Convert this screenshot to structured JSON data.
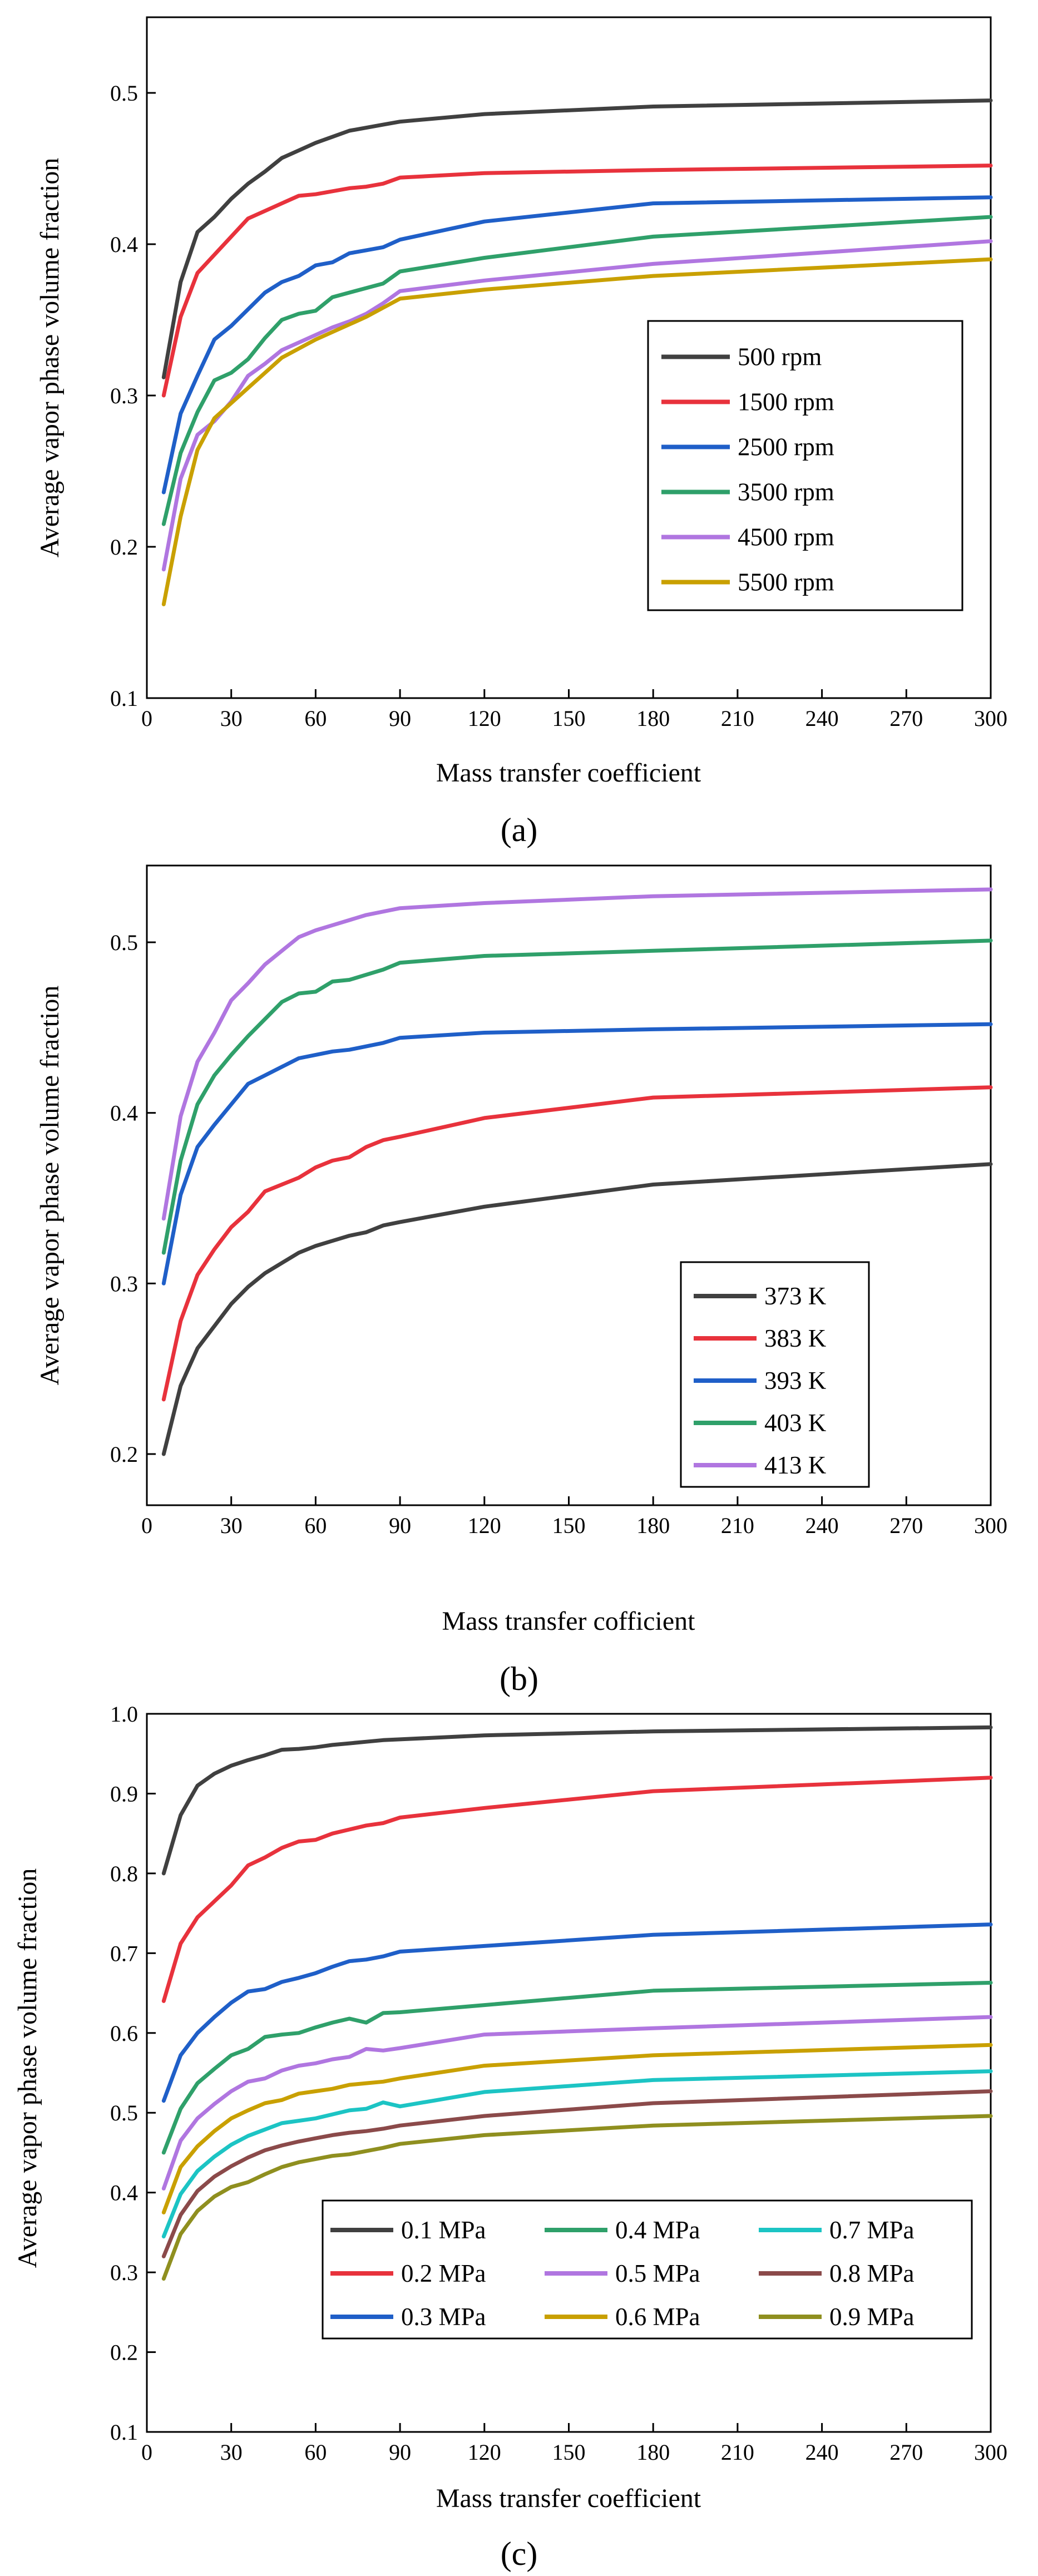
{
  "chart_data": [
    {
      "type": "line",
      "panel_label": "(a)",
      "xlabel": "Mass transfer coefficient",
      "ylabel": "Average vapor phase volume fraction",
      "xlim": [
        0,
        300
      ],
      "ylim": [
        0.1,
        0.55
      ],
      "xticks": [
        0,
        30,
        60,
        90,
        120,
        150,
        180,
        210,
        240,
        270,
        300
      ],
      "yticks": [
        0.1,
        0.2,
        0.3,
        0.4,
        0.5
      ],
      "ytick_labels": [
        "0.1",
        "0.2",
        "0.3",
        "0.4",
        "0.5"
      ],
      "legend_position": "center-right",
      "legend_columns": 1,
      "series": [
        {
          "name": "500 rpm",
          "color": "#404040",
          "x": [
            6,
            12,
            18,
            24,
            30,
            36,
            42,
            48,
            54,
            60,
            66,
            72,
            78,
            84,
            90,
            120,
            180,
            300
          ],
          "y": [
            0.312,
            0.375,
            0.408,
            0.418,
            0.43,
            0.44,
            0.448,
            0.457,
            0.462,
            0.467,
            0.471,
            0.475,
            0.477,
            0.479,
            0.481,
            0.486,
            0.491,
            0.495
          ]
        },
        {
          "name": "1500 rpm",
          "color": "#e8323c",
          "x": [
            6,
            12,
            18,
            24,
            30,
            36,
            42,
            48,
            54,
            60,
            66,
            72,
            78,
            84,
            90,
            120,
            180,
            300
          ],
          "y": [
            0.3,
            0.352,
            0.381,
            0.393,
            0.405,
            0.417,
            0.422,
            0.427,
            0.432,
            0.433,
            0.435,
            0.437,
            0.438,
            0.44,
            0.444,
            0.447,
            0.449,
            0.452
          ]
        },
        {
          "name": "2500 rpm",
          "color": "#1f5fc8",
          "x": [
            6,
            12,
            18,
            24,
            30,
            36,
            42,
            48,
            54,
            60,
            66,
            72,
            78,
            84,
            90,
            120,
            180,
            300
          ],
          "y": [
            0.236,
            0.288,
            0.313,
            0.337,
            0.346,
            0.357,
            0.368,
            0.375,
            0.379,
            0.386,
            0.388,
            0.394,
            0.396,
            0.398,
            0.403,
            0.415,
            0.427,
            0.431
          ]
        },
        {
          "name": "3500 rpm",
          "color": "#2fa06a",
          "x": [
            6,
            12,
            18,
            24,
            30,
            36,
            42,
            48,
            54,
            60,
            66,
            72,
            78,
            84,
            90,
            120,
            180,
            300
          ],
          "y": [
            0.215,
            0.262,
            0.289,
            0.31,
            0.315,
            0.324,
            0.338,
            0.35,
            0.354,
            0.356,
            0.365,
            0.368,
            0.371,
            0.374,
            0.382,
            0.391,
            0.405,
            0.418
          ]
        },
        {
          "name": "4500 rpm",
          "color": "#b076e0",
          "x": [
            6,
            12,
            18,
            24,
            30,
            36,
            42,
            48,
            54,
            60,
            66,
            72,
            78,
            84,
            90,
            120,
            180,
            300
          ],
          "y": [
            0.185,
            0.245,
            0.274,
            0.283,
            0.296,
            0.313,
            0.321,
            0.33,
            0.335,
            0.34,
            0.345,
            0.349,
            0.354,
            0.361,
            0.369,
            0.376,
            0.387,
            0.402
          ]
        },
        {
          "name": "5500 rpm",
          "color": "#c9a000",
          "x": [
            6,
            12,
            18,
            24,
            30,
            36,
            42,
            48,
            54,
            60,
            66,
            72,
            78,
            84,
            90,
            120,
            180,
            300
          ],
          "y": [
            0.162,
            0.22,
            0.264,
            0.285,
            0.295,
            0.305,
            0.315,
            0.325,
            0.331,
            0.337,
            0.342,
            0.347,
            0.352,
            0.358,
            0.364,
            0.37,
            0.379,
            0.39
          ]
        }
      ]
    },
    {
      "type": "line",
      "panel_label": "(b)",
      "xlabel": "Mass transfer cofficient",
      "ylabel": "Average vapor phase volume fraction",
      "xlim": [
        0,
        300
      ],
      "ylim": [
        0.17,
        0.545
      ],
      "xticks": [
        0,
        30,
        60,
        90,
        120,
        150,
        180,
        210,
        240,
        270,
        300
      ],
      "yticks": [
        0.2,
        0.3,
        0.4,
        0.5
      ],
      "ytick_labels": [
        "0.2",
        "0.3",
        "0.4",
        "0.5"
      ],
      "legend_position": "lower-center",
      "legend_columns": 1,
      "series": [
        {
          "name": "373 K",
          "color": "#404040",
          "x": [
            6,
            12,
            18,
            24,
            30,
            36,
            42,
            48,
            54,
            60,
            66,
            72,
            78,
            84,
            90,
            120,
            180,
            300
          ],
          "y": [
            0.2,
            0.24,
            0.262,
            0.275,
            0.288,
            0.298,
            0.306,
            0.312,
            0.318,
            0.322,
            0.325,
            0.328,
            0.33,
            0.334,
            0.336,
            0.345,
            0.358,
            0.37
          ]
        },
        {
          "name": "383 K",
          "color": "#e8323c",
          "x": [
            6,
            12,
            18,
            24,
            30,
            36,
            42,
            48,
            54,
            60,
            66,
            72,
            78,
            84,
            90,
            120,
            180,
            300
          ],
          "y": [
            0.232,
            0.278,
            0.305,
            0.32,
            0.333,
            0.342,
            0.354,
            0.358,
            0.362,
            0.368,
            0.372,
            0.374,
            0.38,
            0.384,
            0.386,
            0.397,
            0.409,
            0.415
          ]
        },
        {
          "name": "393 K",
          "color": "#1f5fc8",
          "x": [
            6,
            12,
            18,
            24,
            30,
            36,
            42,
            48,
            54,
            60,
            66,
            72,
            78,
            84,
            90,
            120,
            180,
            300
          ],
          "y": [
            0.3,
            0.352,
            0.38,
            0.393,
            0.405,
            0.417,
            0.422,
            0.427,
            0.432,
            0.434,
            0.436,
            0.437,
            0.439,
            0.441,
            0.444,
            0.447,
            0.449,
            0.452
          ]
        },
        {
          "name": "403 K",
          "color": "#2fa06a",
          "x": [
            6,
            12,
            18,
            24,
            30,
            36,
            42,
            48,
            54,
            60,
            66,
            72,
            78,
            84,
            90,
            120,
            180,
            300
          ],
          "y": [
            0.318,
            0.372,
            0.405,
            0.422,
            0.434,
            0.445,
            0.455,
            0.465,
            0.47,
            0.471,
            0.477,
            0.478,
            0.481,
            0.484,
            0.488,
            0.492,
            0.495,
            0.501
          ]
        },
        {
          "name": "413 K",
          "color": "#b076e0",
          "x": [
            6,
            12,
            18,
            24,
            30,
            36,
            42,
            48,
            54,
            60,
            66,
            72,
            78,
            84,
            90,
            120,
            180,
            300
          ],
          "y": [
            0.338,
            0.398,
            0.43,
            0.447,
            0.466,
            0.476,
            0.487,
            0.495,
            0.503,
            0.507,
            0.51,
            0.513,
            0.516,
            0.518,
            0.52,
            0.523,
            0.527,
            0.531
          ]
        }
      ]
    },
    {
      "type": "line",
      "panel_label": "(c)",
      "xlabel": "Mass transfer coefficient",
      "ylabel": "Average vapor phase volume fraction",
      "xlim": [
        0,
        300
      ],
      "ylim": [
        0.1,
        1.0
      ],
      "xticks": [
        0,
        30,
        60,
        90,
        120,
        150,
        180,
        210,
        240,
        270,
        300
      ],
      "yticks": [
        0.1,
        0.2,
        0.3,
        0.4,
        0.5,
        0.6,
        0.7,
        0.8,
        0.9,
        1.0
      ],
      "ytick_labels": [
        "0.1",
        "0.2",
        "0.3",
        "0.4",
        "0.5",
        "0.6",
        "0.7",
        "0.8",
        "0.9",
        "1.0"
      ],
      "legend_position": "lower-center",
      "legend_columns": 3,
      "series": [
        {
          "name": "0.1 MPa",
          "color": "#404040",
          "x": [
            6,
            12,
            18,
            24,
            30,
            36,
            42,
            48,
            54,
            60,
            66,
            72,
            78,
            84,
            90,
            120,
            180,
            300
          ],
          "y": [
            0.8,
            0.873,
            0.91,
            0.925,
            0.935,
            0.942,
            0.948,
            0.955,
            0.956,
            0.958,
            0.961,
            0.963,
            0.965,
            0.967,
            0.968,
            0.973,
            0.978,
            0.983
          ]
        },
        {
          "name": "0.2 MPa",
          "color": "#e8323c",
          "x": [
            6,
            12,
            18,
            24,
            30,
            36,
            42,
            48,
            54,
            60,
            66,
            72,
            78,
            84,
            90,
            120,
            180,
            300
          ],
          "y": [
            0.64,
            0.712,
            0.745,
            0.765,
            0.785,
            0.81,
            0.82,
            0.832,
            0.84,
            0.842,
            0.85,
            0.855,
            0.86,
            0.863,
            0.87,
            0.882,
            0.903,
            0.92
          ]
        },
        {
          "name": "0.3 MPa",
          "color": "#1f5fc8",
          "x": [
            6,
            12,
            18,
            24,
            30,
            36,
            42,
            48,
            54,
            60,
            66,
            72,
            78,
            84,
            90,
            120,
            180,
            300
          ],
          "y": [
            0.515,
            0.572,
            0.6,
            0.62,
            0.638,
            0.652,
            0.655,
            0.664,
            0.669,
            0.675,
            0.683,
            0.69,
            0.692,
            0.696,
            0.702,
            0.709,
            0.723,
            0.736
          ]
        },
        {
          "name": "0.4 MPa",
          "color": "#2fa06a",
          "x": [
            6,
            12,
            18,
            24,
            30,
            36,
            42,
            48,
            54,
            60,
            66,
            72,
            78,
            84,
            90,
            120,
            180,
            300
          ],
          "y": [
            0.45,
            0.505,
            0.537,
            0.555,
            0.572,
            0.58,
            0.595,
            0.598,
            0.6,
            0.607,
            0.613,
            0.618,
            0.613,
            0.625,
            0.626,
            0.635,
            0.653,
            0.663
          ]
        },
        {
          "name": "0.5 MPa",
          "color": "#b076e0",
          "x": [
            6,
            12,
            18,
            24,
            30,
            36,
            42,
            48,
            54,
            60,
            66,
            72,
            78,
            84,
            90,
            120,
            180,
            300
          ],
          "y": [
            0.405,
            0.465,
            0.493,
            0.511,
            0.527,
            0.539,
            0.543,
            0.553,
            0.559,
            0.562,
            0.567,
            0.57,
            0.58,
            0.578,
            0.581,
            0.598,
            0.606,
            0.62
          ]
        },
        {
          "name": "0.6 MPa",
          "color": "#c9a000",
          "x": [
            6,
            12,
            18,
            24,
            30,
            36,
            42,
            48,
            54,
            60,
            66,
            72,
            78,
            84,
            90,
            120,
            180,
            300
          ],
          "y": [
            0.375,
            0.432,
            0.458,
            0.477,
            0.493,
            0.503,
            0.512,
            0.516,
            0.524,
            0.527,
            0.53,
            0.535,
            0.537,
            0.539,
            0.543,
            0.559,
            0.572,
            0.585
          ]
        },
        {
          "name": "0.7 MPa",
          "color": "#1cc4c4",
          "x": [
            6,
            12,
            18,
            24,
            30,
            36,
            42,
            48,
            54,
            60,
            66,
            72,
            78,
            84,
            90,
            120,
            180,
            300
          ],
          "y": [
            0.345,
            0.398,
            0.427,
            0.445,
            0.46,
            0.471,
            0.479,
            0.487,
            0.49,
            0.493,
            0.498,
            0.503,
            0.505,
            0.513,
            0.508,
            0.526,
            0.541,
            0.552
          ]
        },
        {
          "name": "0.8 MPa",
          "color": "#8b4a4a",
          "x": [
            6,
            12,
            18,
            24,
            30,
            36,
            42,
            48,
            54,
            60,
            66,
            72,
            78,
            84,
            90,
            120,
            180,
            300
          ],
          "y": [
            0.32,
            0.372,
            0.402,
            0.42,
            0.433,
            0.444,
            0.453,
            0.459,
            0.464,
            0.468,
            0.472,
            0.475,
            0.477,
            0.48,
            0.484,
            0.496,
            0.512,
            0.527
          ]
        },
        {
          "name": "0.9 MPa",
          "color": "#8f8f1f",
          "x": [
            6,
            12,
            18,
            24,
            30,
            36,
            42,
            48,
            54,
            60,
            66,
            72,
            78,
            84,
            90,
            120,
            180,
            300
          ],
          "y": [
            0.292,
            0.348,
            0.377,
            0.395,
            0.407,
            0.413,
            0.423,
            0.432,
            0.438,
            0.442,
            0.446,
            0.448,
            0.452,
            0.456,
            0.461,
            0.472,
            0.484,
            0.496
          ]
        }
      ]
    }
  ]
}
